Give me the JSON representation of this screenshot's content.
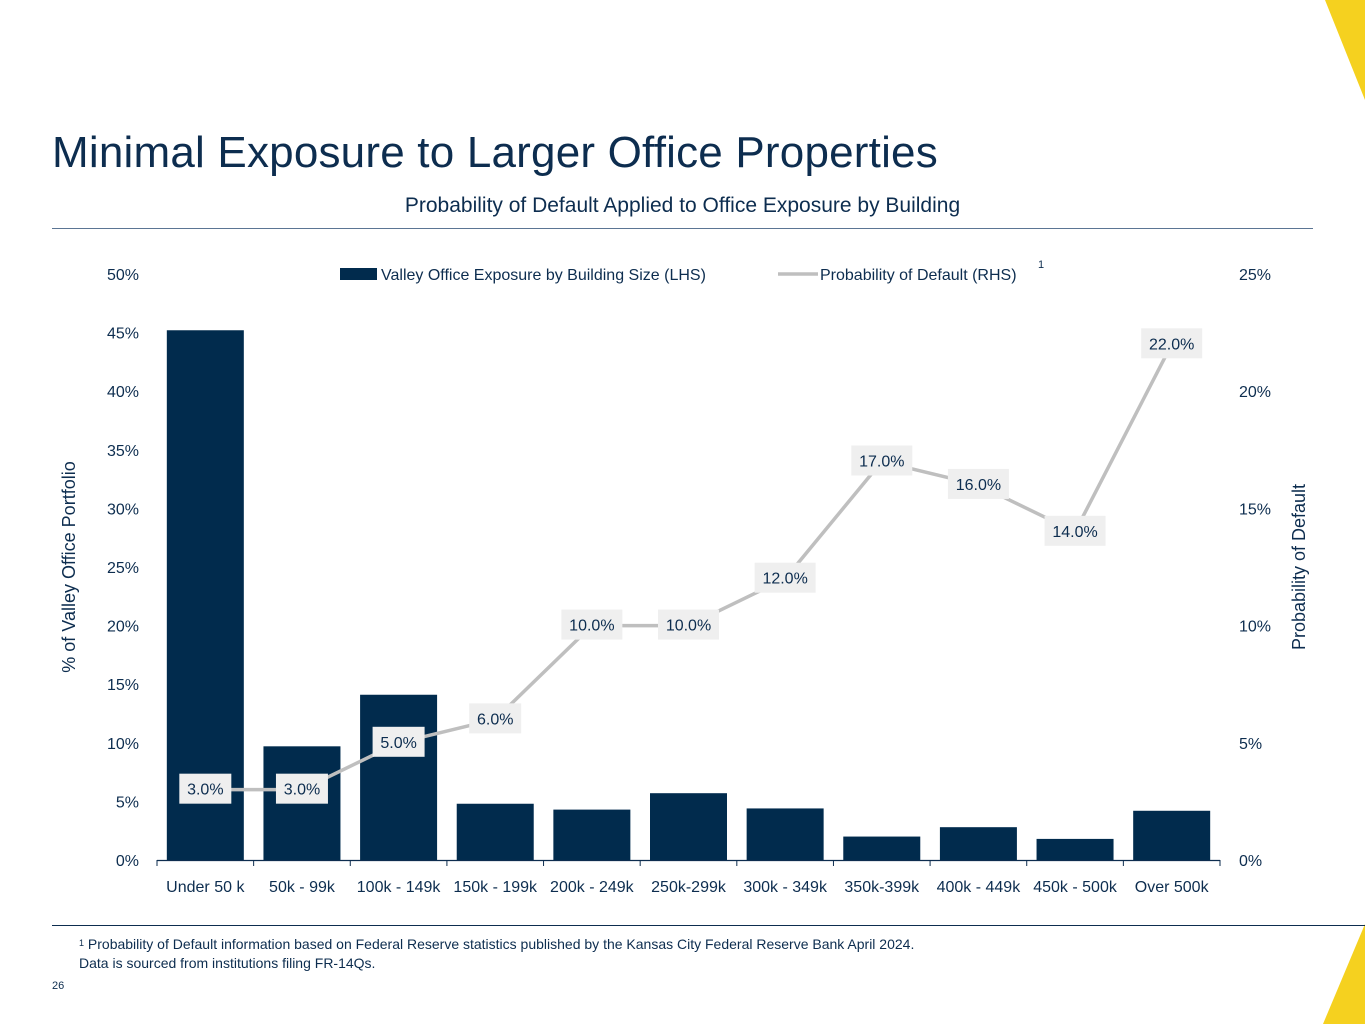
{
  "page": {
    "title": "Minimal Exposure to Larger Office Properties",
    "subtitle": "Probability of Default Applied to Office Exposure by Building",
    "footnote_marker": "1",
    "footnote_line1": "Probability of Default information based on Federal Reserve statistics published by the Kansas City Federal Reserve Bank April 2024.",
    "footnote_line2": "Data is sourced from institutions filing FR-14Qs.",
    "page_number": "26"
  },
  "colors": {
    "navy": "#012b4d",
    "gray_line": "#bfbfbf",
    "label_bg": "#efefef",
    "accent_yellow": "#f5d11f"
  },
  "chart_data": {
    "type": "bar",
    "combo": "bar+line",
    "categories": [
      "Under 50 k",
      "50k - 99k",
      "100k - 149k",
      "150k - 199k",
      "200k - 249k",
      "250k-299k",
      "300k - 349k",
      "350k-399k",
      "400k - 449k",
      "450k - 500k",
      "Over 500k"
    ],
    "series": [
      {
        "name": "Valley Office Exposure by Building Size (LHS)",
        "type": "bar",
        "axis": "left",
        "values": [
          45.2,
          9.7,
          14.1,
          4.8,
          4.3,
          5.7,
          4.4,
          2.0,
          2.8,
          1.8,
          4.2
        ]
      },
      {
        "name": "Probability of Default (RHS)",
        "type": "line",
        "axis": "right",
        "values": [
          3.0,
          3.0,
          5.0,
          6.0,
          10.0,
          10.0,
          12.0,
          17.0,
          16.0,
          14.0,
          22.0
        ],
        "data_labels": [
          "3.0%",
          "3.0%",
          "5.0%",
          "6.0%",
          "10.0%",
          "10.0%",
          "12.0%",
          "17.0%",
          "16.0%",
          "14.0%",
          "22.0%"
        ]
      }
    ],
    "legend_superscript": "1",
    "ylabel_left": "% of Valley Office Portfolio",
    "ylabel_right": "Probability of Default",
    "ylim_left": [
      0,
      50
    ],
    "ylim_right": [
      0,
      25
    ],
    "yticks_left": [
      "0%",
      "5%",
      "10%",
      "15%",
      "20%",
      "25%",
      "30%",
      "35%",
      "40%",
      "45%",
      "50%"
    ],
    "yticks_right": [
      "0%",
      "5%",
      "10%",
      "15%",
      "20%",
      "25%"
    ],
    "legend_position": "top-center",
    "grid": false
  }
}
